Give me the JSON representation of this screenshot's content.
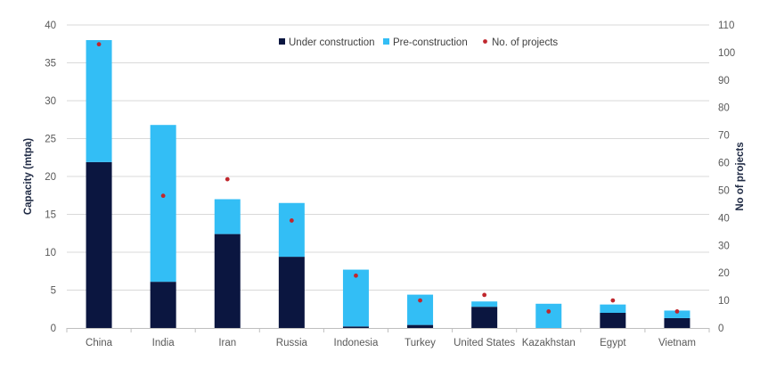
{
  "chart_data": {
    "type": "bar",
    "stacked": true,
    "categories": [
      "China",
      "India",
      "Iran",
      "Russia",
      "Indonesia",
      "Turkey",
      "United States",
      "Kazakhstan",
      "Egypt",
      "Vietnam"
    ],
    "series": [
      {
        "name": "Under construction",
        "axis": "left",
        "kind": "bar",
        "color": "#0b1640",
        "values": [
          21.9,
          6.1,
          12.4,
          9.4,
          0.2,
          0.4,
          2.8,
          0.0,
          2.0,
          1.3
        ]
      },
      {
        "name": "Pre-construction",
        "axis": "left",
        "kind": "bar",
        "color": "#33bef5",
        "values": [
          16.1,
          20.7,
          4.6,
          7.1,
          7.5,
          4.0,
          0.7,
          3.2,
          1.1,
          1.0
        ]
      },
      {
        "name": "No. of projects",
        "axis": "right",
        "kind": "point",
        "color": "#c0272d",
        "values": [
          103,
          48,
          54,
          39,
          19,
          10,
          12,
          6,
          10,
          6
        ]
      }
    ],
    "ylabel": "Capacity (mtpa)",
    "y2label": "No of projects",
    "ylim": [
      0,
      40
    ],
    "yticks": [
      "0",
      "5",
      "10",
      "15",
      "20",
      "25",
      "30",
      "35",
      "40"
    ],
    "y2lim": [
      0,
      110
    ],
    "y2ticks": [
      "0",
      "10",
      "20",
      "30",
      "40",
      "50",
      "60",
      "70",
      "80",
      "90",
      "100",
      "110"
    ],
    "grid": true,
    "legend_position": "top-right"
  }
}
